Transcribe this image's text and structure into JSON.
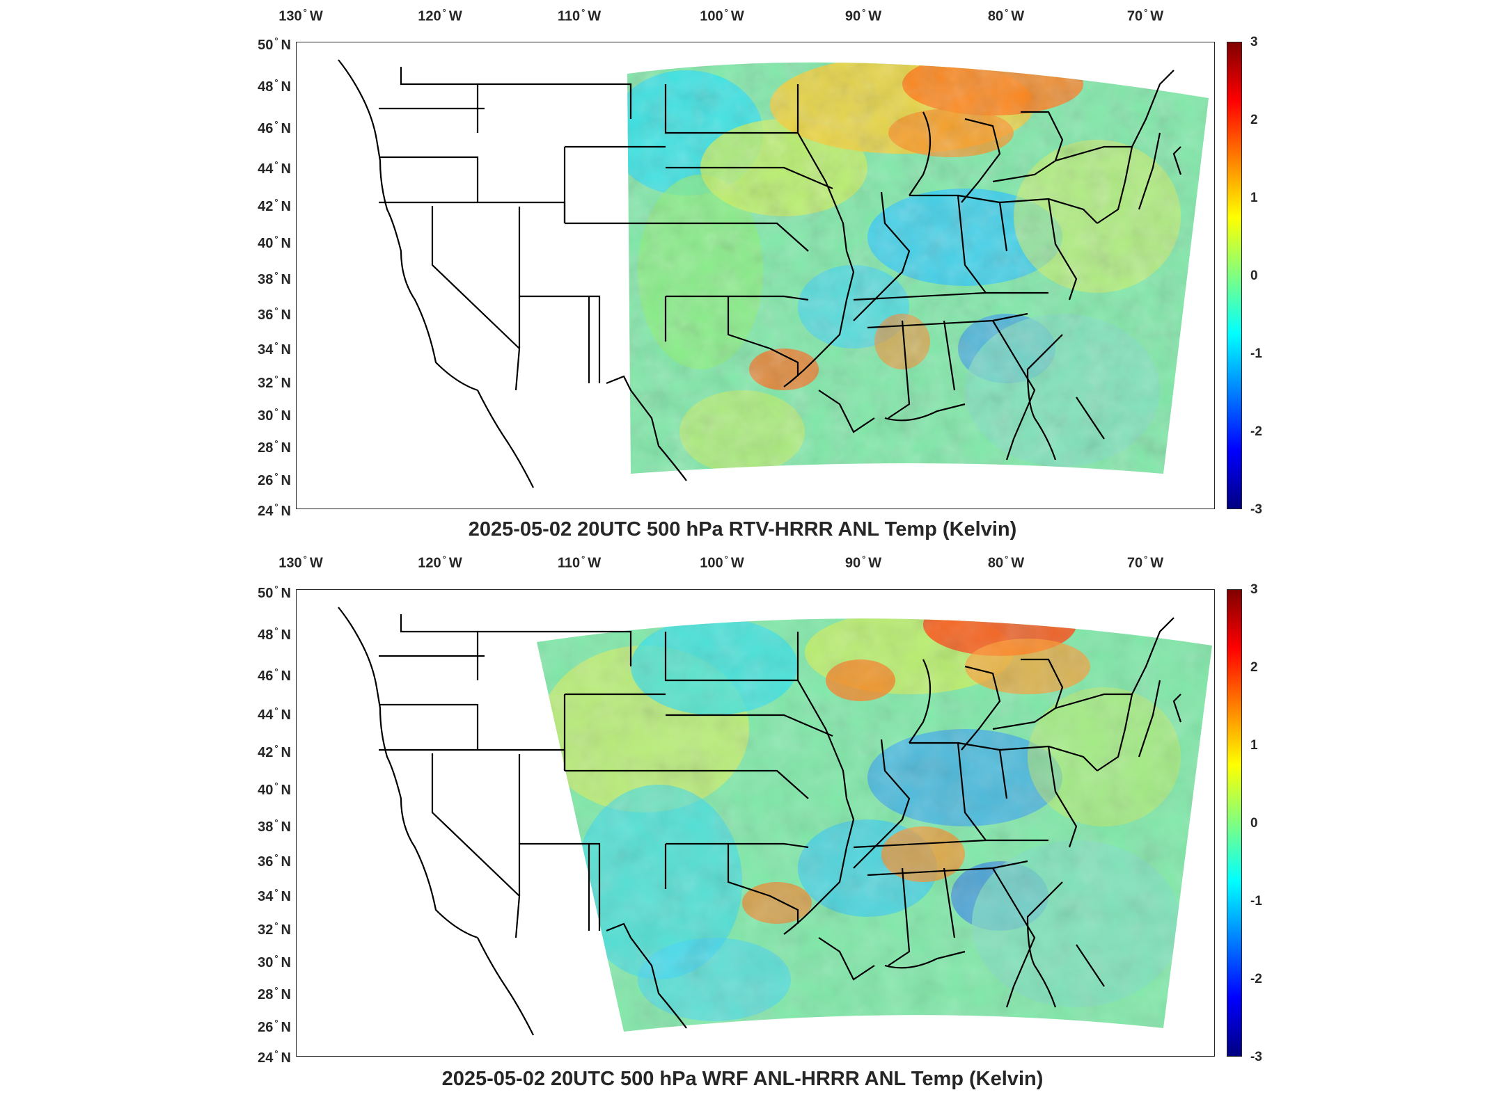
{
  "map_panels": [
    {
      "id": "top",
      "title": "2025-05-02 20UTC 500 hPa RTV-HRRR ANL Temp (Kelvin)",
      "lon_ticks": [
        {
          "deg": "130",
          "dir": "W"
        },
        {
          "deg": "120",
          "dir": "W"
        },
        {
          "deg": "110",
          "dir": "W"
        },
        {
          "deg": "100",
          "dir": "W"
        },
        {
          "deg": "90",
          "dir": "W"
        },
        {
          "deg": "80",
          "dir": "W"
        },
        {
          "deg": "70",
          "dir": "W"
        }
      ],
      "lat_ticks": [
        {
          "deg": "50",
          "dir": "N"
        },
        {
          "deg": "48",
          "dir": "N"
        },
        {
          "deg": "46",
          "dir": "N"
        },
        {
          "deg": "44",
          "dir": "N"
        },
        {
          "deg": "42",
          "dir": "N"
        },
        {
          "deg": "40",
          "dir": "N"
        },
        {
          "deg": "38",
          "dir": "N"
        },
        {
          "deg": "36",
          "dir": "N"
        },
        {
          "deg": "34",
          "dir": "N"
        },
        {
          "deg": "32",
          "dir": "N"
        },
        {
          "deg": "30",
          "dir": "N"
        },
        {
          "deg": "28",
          "dir": "N"
        },
        {
          "deg": "26",
          "dir": "N"
        },
        {
          "deg": "24",
          "dir": "N"
        }
      ],
      "colorbar_ticks": [
        "3",
        "2",
        "1",
        "0",
        "-1",
        "-2",
        "-3"
      ]
    },
    {
      "id": "bottom",
      "title": "2025-05-02 20UTC 500 hPa WRF ANL-HRRR ANL Temp (Kelvin)",
      "lon_ticks": [
        {
          "deg": "130",
          "dir": "W"
        },
        {
          "deg": "120",
          "dir": "W"
        },
        {
          "deg": "110",
          "dir": "W"
        },
        {
          "deg": "100",
          "dir": "W"
        },
        {
          "deg": "90",
          "dir": "W"
        },
        {
          "deg": "80",
          "dir": "W"
        },
        {
          "deg": "70",
          "dir": "W"
        }
      ],
      "lat_ticks": [
        {
          "deg": "50",
          "dir": "N"
        },
        {
          "deg": "48",
          "dir": "N"
        },
        {
          "deg": "46",
          "dir": "N"
        },
        {
          "deg": "44",
          "dir": "N"
        },
        {
          "deg": "42",
          "dir": "N"
        },
        {
          "deg": "40",
          "dir": "N"
        },
        {
          "deg": "38",
          "dir": "N"
        },
        {
          "deg": "36",
          "dir": "N"
        },
        {
          "deg": "34",
          "dir": "N"
        },
        {
          "deg": "32",
          "dir": "N"
        },
        {
          "deg": "30",
          "dir": "N"
        },
        {
          "deg": "28",
          "dir": "N"
        },
        {
          "deg": "26",
          "dir": "N"
        },
        {
          "deg": "24",
          "dir": "N"
        }
      ],
      "colorbar_ticks": [
        "3",
        "2",
        "1",
        "0",
        "-1",
        "-2",
        "-3"
      ]
    }
  ],
  "colormap": "jet",
  "colorbar_range": [
    -3,
    3
  ],
  "colors": {
    "field_neutral": "#7fe9a8",
    "field_cool": "#2ee0f0",
    "field_warm": "#f2e63a",
    "field_hot": "#ff3a12",
    "field_cold": "#1e60ff",
    "borders": "#000000"
  }
}
